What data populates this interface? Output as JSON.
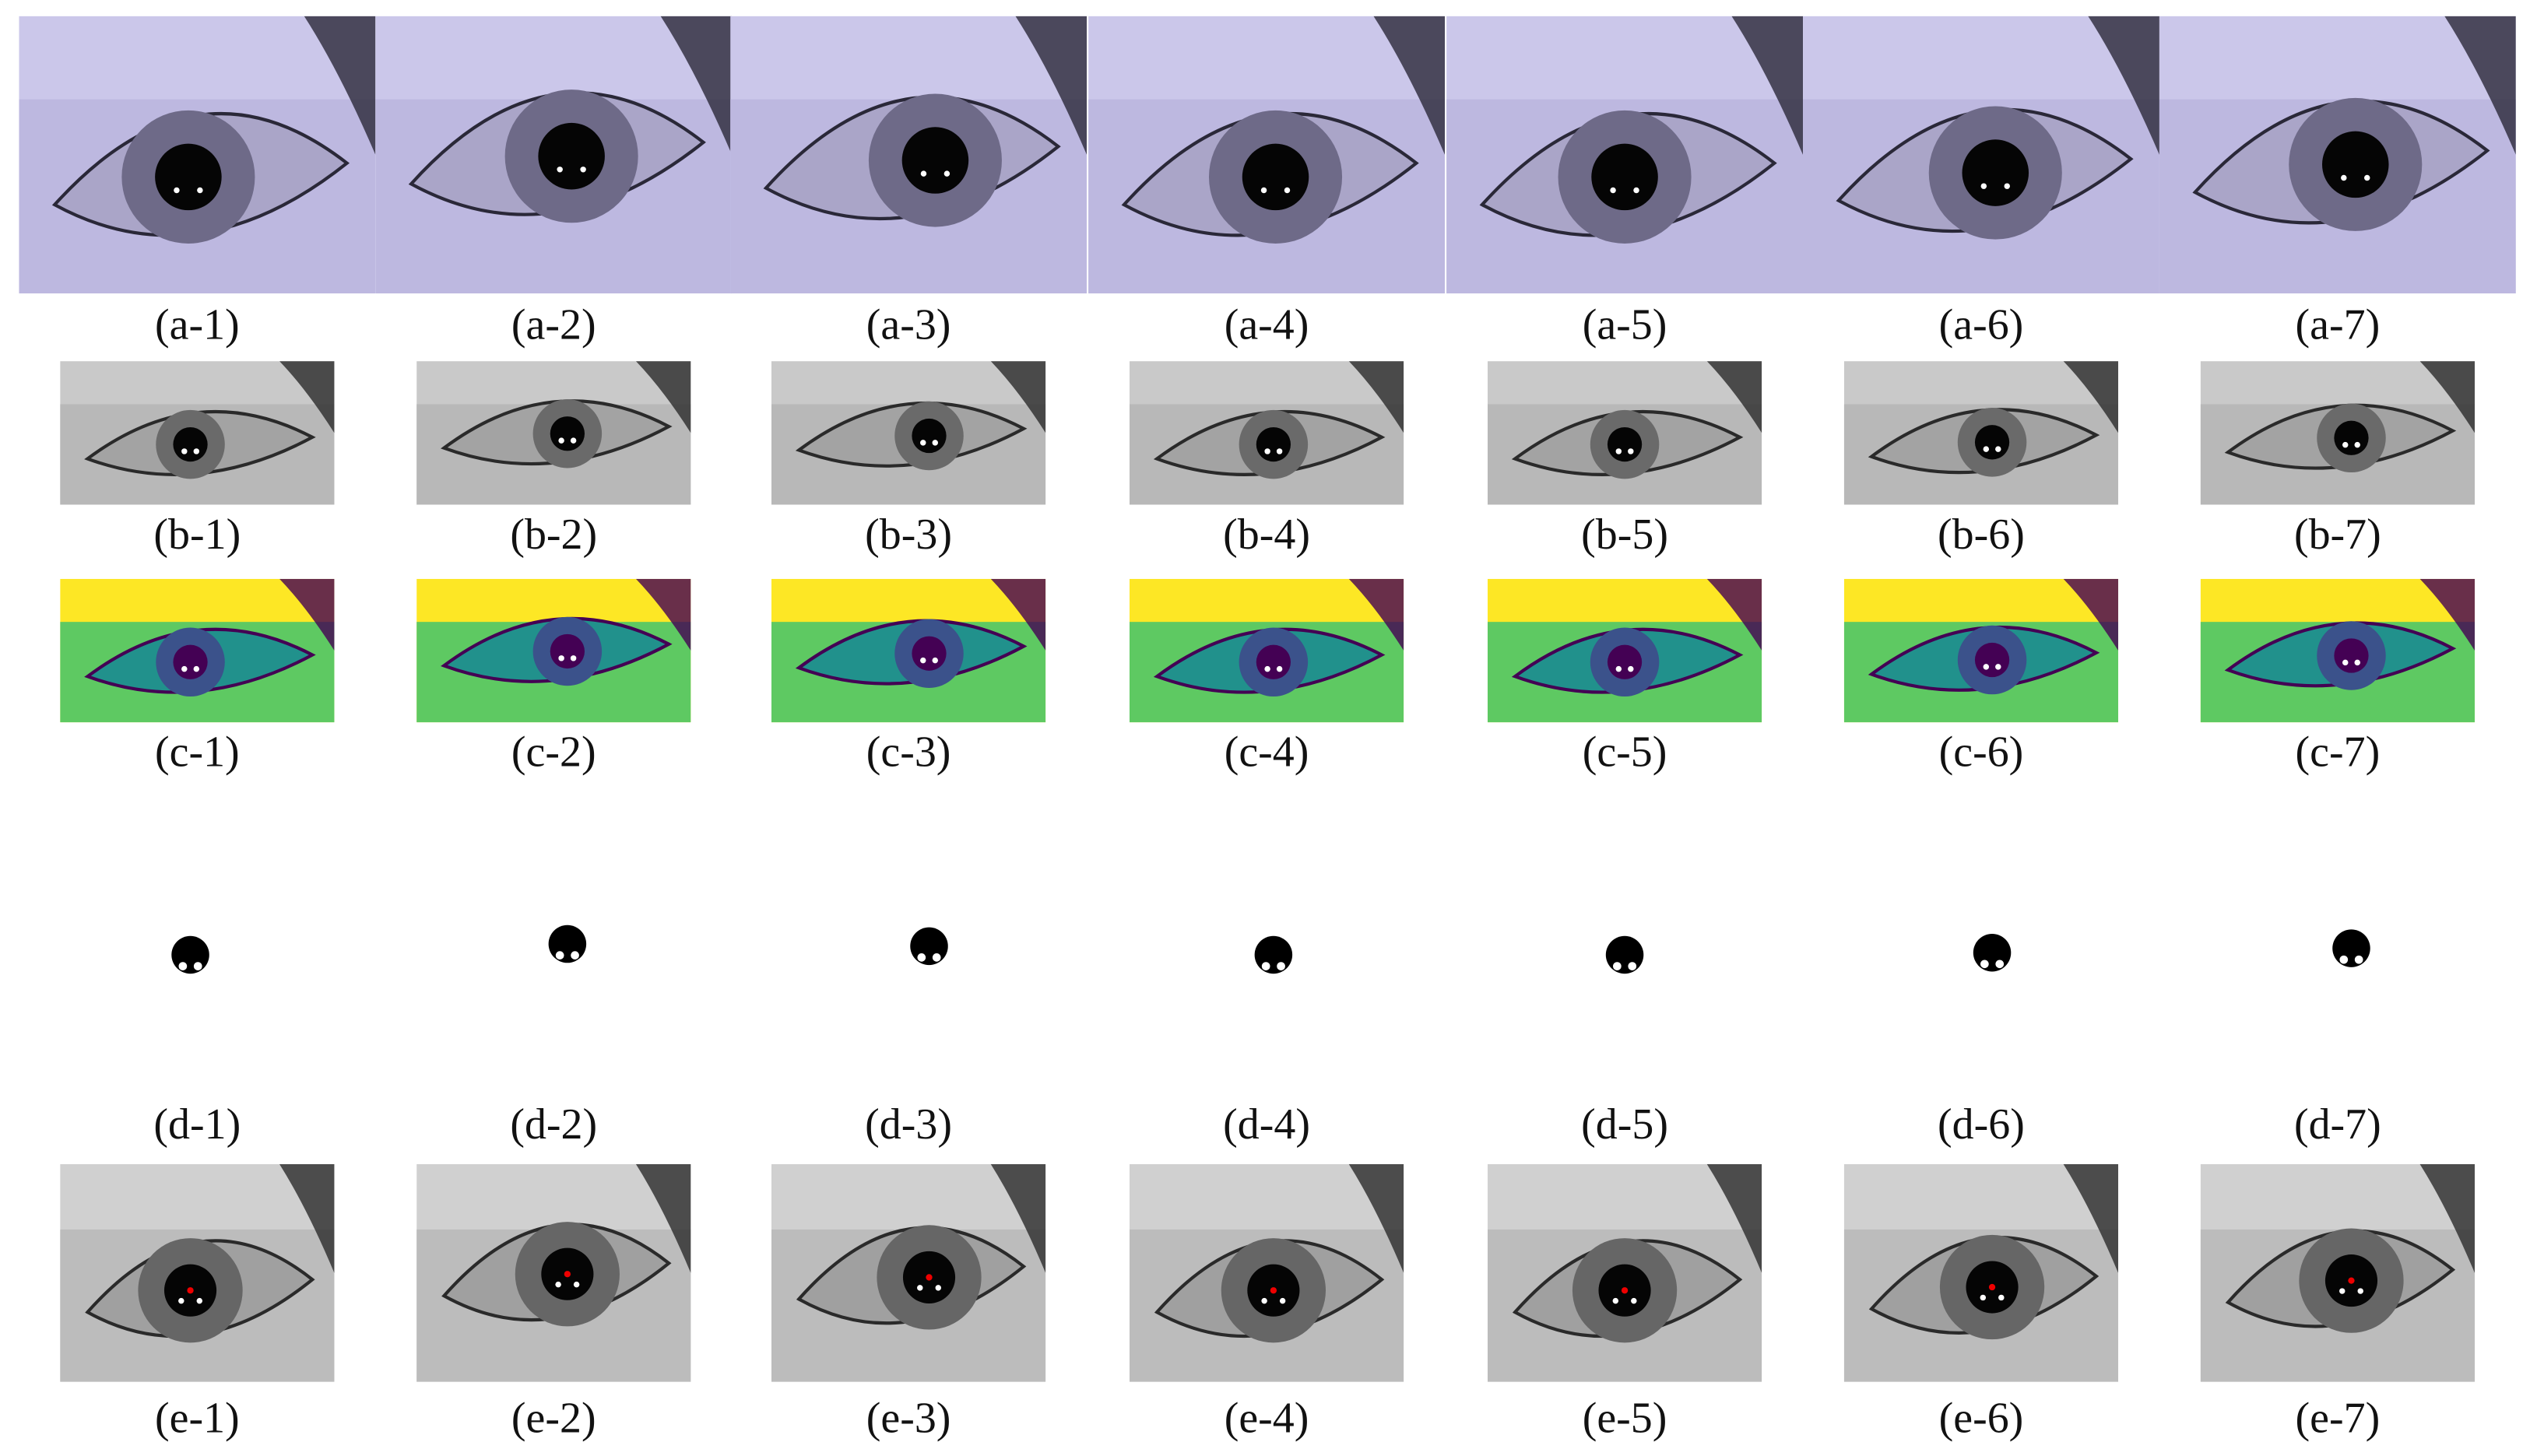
{
  "rows": [
    {
      "labels": [
        "(a-1)",
        "(a-2)",
        "(a-3)",
        "(a-4)",
        "(a-5)",
        "(a-6)",
        "(a-7)"
      ]
    },
    {
      "labels": [
        "(b-1)",
        "(b-2)",
        "(b-3)",
        "(b-4)",
        "(b-5)",
        "(b-6)",
        "(b-7)"
      ]
    },
    {
      "labels": [
        "(c-1)",
        "(c-2)",
        "(c-3)",
        "(c-4)",
        "(c-5)",
        "(c-6)",
        "(c-7)"
      ]
    },
    {
      "labels": [
        "(d-1)",
        "(d-2)",
        "(d-3)",
        "(d-4)",
        "(d-5)",
        "(d-6)",
        "(d-7)"
      ]
    },
    {
      "labels": [
        "(e-1)",
        "(e-2)",
        "(e-3)",
        "(e-4)",
        "(e-5)",
        "(e-6)",
        "(e-7)"
      ]
    }
  ]
}
